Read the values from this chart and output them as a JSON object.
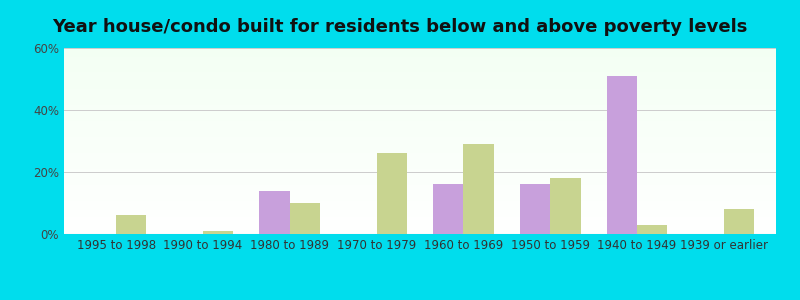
{
  "title": "Year house/condo built for residents below and above poverty levels",
  "categories": [
    "1995 to 1998",
    "1990 to 1994",
    "1980 to 1989",
    "1970 to 1979",
    "1960 to 1969",
    "1950 to 1959",
    "1940 to 1949",
    "1939 or earlier"
  ],
  "below_poverty": [
    0,
    0,
    14,
    0,
    16,
    16,
    51,
    0
  ],
  "above_poverty": [
    6,
    1,
    10,
    26,
    29,
    18,
    3,
    8
  ],
  "below_color": "#c8a0dc",
  "above_color": "#c8d490",
  "ylim": [
    0,
    60
  ],
  "yticks": [
    0,
    20,
    40,
    60
  ],
  "ytick_labels": [
    "0%",
    "20%",
    "40%",
    "60%"
  ],
  "bar_width": 0.35,
  "outer_bg": "#00dded",
  "title_fontsize": 13,
  "tick_fontsize": 8.5
}
